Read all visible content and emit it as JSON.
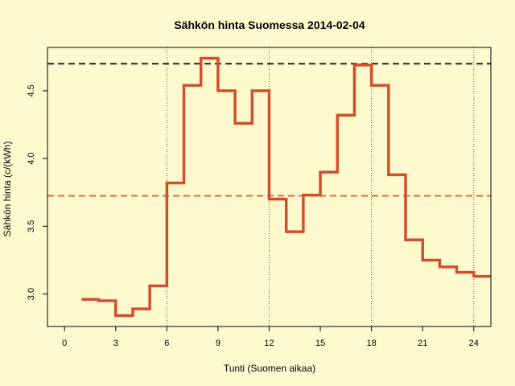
{
  "chart_data": {
    "type": "line",
    "step": true,
    "title": "Sähkön hinta Suomessa 2014-02-04",
    "xlabel": "Tunti (Suomen aikaa)",
    "ylabel": "Sähkön hinta (c/(kWh)",
    "xlim": [
      -1,
      25
    ],
    "ylim": [
      2.76,
      4.82
    ],
    "x_ticks": [
      0,
      3,
      6,
      9,
      12,
      15,
      18,
      21,
      24
    ],
    "y_ticks": [
      3.0,
      3.5,
      4.0,
      4.5
    ],
    "y_tick_labels": [
      "3.0",
      "3.5",
      "4.0",
      "4.5"
    ],
    "vertical_reference_lines": [
      6,
      12,
      18,
      24
    ],
    "series": [
      {
        "color": "#d0502e",
        "x": [
          1,
          2,
          3,
          4,
          5,
          6,
          7,
          8,
          9,
          10,
          11,
          12,
          13,
          14,
          15,
          16,
          17,
          18,
          19,
          20,
          21,
          22,
          23,
          24
        ],
        "values": [
          2.96,
          2.95,
          2.84,
          2.89,
          3.06,
          3.82,
          4.54,
          4.74,
          4.5,
          4.26,
          4.5,
          3.7,
          3.46,
          3.73,
          3.9,
          4.32,
          4.69,
          4.54,
          3.88,
          3.4,
          3.25,
          3.2,
          3.16,
          3.13
        ]
      }
    ],
    "horizontal_reference_lines": [
      {
        "value": 4.7,
        "color": "#222222",
        "style": "dashed"
      },
      {
        "value": 3.725,
        "color": "#e0654a",
        "style": "dashed"
      }
    ]
  }
}
